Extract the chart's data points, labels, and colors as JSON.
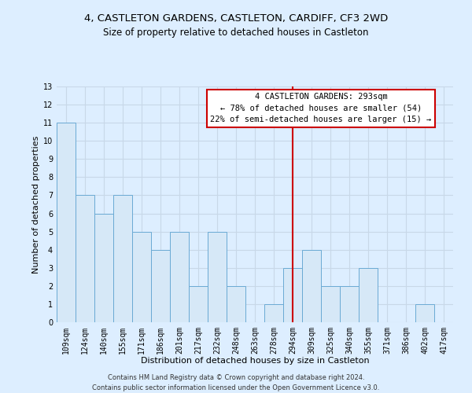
{
  "title": "4, CASTLETON GARDENS, CASTLETON, CARDIFF, CF3 2WD",
  "subtitle": "Size of property relative to detached houses in Castleton",
  "xlabel": "Distribution of detached houses by size in Castleton",
  "ylabel": "Number of detached properties",
  "bin_labels": [
    "109sqm",
    "124sqm",
    "140sqm",
    "155sqm",
    "171sqm",
    "186sqm",
    "201sqm",
    "217sqm",
    "232sqm",
    "248sqm",
    "263sqm",
    "278sqm",
    "294sqm",
    "309sqm",
    "325sqm",
    "340sqm",
    "355sqm",
    "371sqm",
    "386sqm",
    "402sqm",
    "417sqm"
  ],
  "bar_heights": [
    11,
    7,
    6,
    7,
    5,
    4,
    5,
    2,
    5,
    2,
    0,
    1,
    3,
    4,
    2,
    2,
    3,
    0,
    0,
    1,
    0
  ],
  "bar_color": "#d6e8f7",
  "bar_edge_color": "#6aaad4",
  "vline_x_index": 12,
  "vline_color": "#cc0000",
  "annotation_box_text": "4 CASTLETON GARDENS: 293sqm\n← 78% of detached houses are smaller (54)\n22% of semi-detached houses are larger (15) →",
  "annotation_box_edge_color": "#cc0000",
  "annotation_box_bg_color": "#ffffff",
  "ylim": [
    0,
    13
  ],
  "yticks": [
    0,
    1,
    2,
    3,
    4,
    5,
    6,
    7,
    8,
    9,
    10,
    11,
    12,
    13
  ],
  "grid_color": "#c8d8e8",
  "bg_color": "#ddeeff",
  "plot_bg_color": "#ddeeff",
  "footer_line1": "Contains HM Land Registry data © Crown copyright and database right 2024.",
  "footer_line2": "Contains public sector information licensed under the Open Government Licence v3.0.",
  "title_fontsize": 9.5,
  "subtitle_fontsize": 8.5,
  "xlabel_fontsize": 8,
  "ylabel_fontsize": 8,
  "tick_fontsize": 7,
  "footer_fontsize": 6,
  "annotation_fontsize": 7.5
}
